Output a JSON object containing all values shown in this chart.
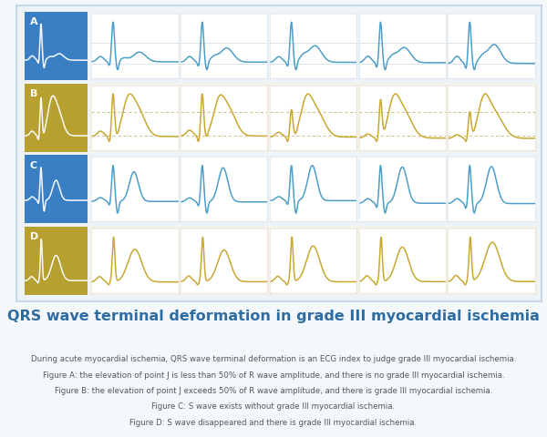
{
  "title": "QRS wave terminal deformation in grade III myocardial ischemia",
  "title_color": "#2e6da4",
  "title_fontsize": 11.5,
  "caption_lines": [
    "During acute myocardial ischemia, QRS wave terminal deformation is an ECG index to judge grade III myocardial ischemia.",
    "Figure A: the elevation of point J is less than 50% of R wave amplitude, and there is no grade III myocardial ischemia.",
    "Figure B: the elevation of point J exceeds 50% of R wave amplitude, and there is grade III myocardial ischemia.",
    "Figure C: S wave exists without grade III myocardial ischemia.",
    "Figure D: S wave disappeared and there is grade III myocardial ischemia."
  ],
  "caption_fontsize": 6.2,
  "caption_color": "#555555",
  "bg_color": "#eef3f8",
  "outer_bg": "#f5f8fb",
  "row_labels": [
    "A",
    "B",
    "C",
    "D"
  ],
  "label_bg_colors": [
    "#3a7ec4",
    "#b5a030",
    "#3a7ec4",
    "#b5a030"
  ],
  "panel_bg": "#ffffff",
  "row_bg_colors": [
    "#eaf3fb",
    "#f5f0e0",
    "#eaf3fb",
    "#f5f0e0"
  ],
  "ecg_colors": [
    "#4d9ec8",
    "#c8a830",
    "#4d9ec8",
    "#c8a830"
  ],
  "thumb_ecg_colors": [
    "#ffffff",
    "#f5e070",
    "#a8d8f0",
    "#f5e070"
  ],
  "dashed_color_B": "#c8b060",
  "border_color": "#c8d8e8",
  "separator_color": "#d8e4ee"
}
